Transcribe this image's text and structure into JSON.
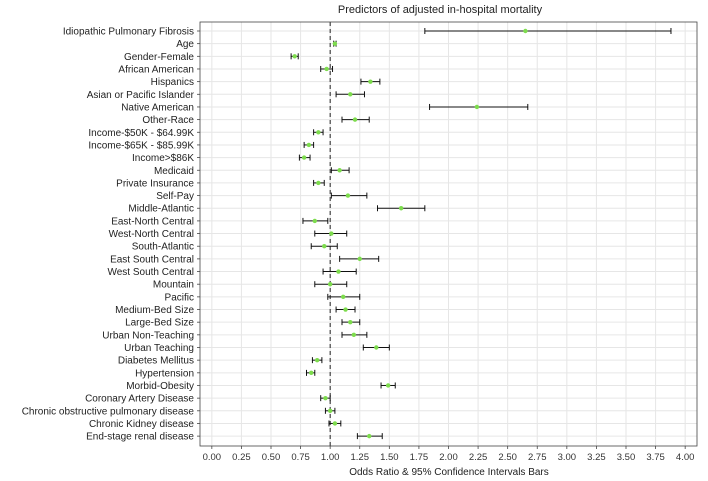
{
  "chart_data": {
    "type": "forest",
    "title": "Predictors of adjusted in-hospital mortality",
    "xlabel": "Odds Ratio & 95% Confidence Intervals Bars",
    "ylabel": "",
    "xlim": [
      -0.1,
      4.1
    ],
    "reference_line": 1.0,
    "x_ticks": [
      "0.00",
      "0.25",
      "0.50",
      "0.75",
      "1.00",
      "1.25",
      "1.50",
      "1.75",
      "2.00",
      "2.25",
      "2.50",
      "2.75",
      "3.00",
      "3.25",
      "3.50",
      "3.75",
      "4.00"
    ],
    "grid": true,
    "point_color": "#7ddc4d",
    "bar_color": "#111111",
    "rows": [
      {
        "label": "Idiopathic Pulmonary Fibrosis",
        "or": 2.65,
        "lo": 1.8,
        "hi": 3.88
      },
      {
        "label": "Age",
        "or": 1.04,
        "lo": 1.03,
        "hi": 1.05
      },
      {
        "label": "Gender-Female",
        "or": 0.7,
        "lo": 0.67,
        "hi": 0.73
      },
      {
        "label": "African American",
        "or": 0.97,
        "lo": 0.92,
        "hi": 1.02
      },
      {
        "label": "Hispanics",
        "or": 1.34,
        "lo": 1.26,
        "hi": 1.42
      },
      {
        "label": "Asian or Pacific Islander",
        "or": 1.17,
        "lo": 1.05,
        "hi": 1.29
      },
      {
        "label": "Native American",
        "or": 2.24,
        "lo": 1.84,
        "hi": 2.67
      },
      {
        "label": "Other-Race",
        "or": 1.21,
        "lo": 1.1,
        "hi": 1.33
      },
      {
        "label": "Income-$50K - $64.99K",
        "or": 0.9,
        "lo": 0.86,
        "hi": 0.94
      },
      {
        "label": "Income-$65K - $85.99K",
        "or": 0.82,
        "lo": 0.78,
        "hi": 0.86
      },
      {
        "label": "Income>$86K",
        "or": 0.78,
        "lo": 0.74,
        "hi": 0.83
      },
      {
        "label": "Medicaid",
        "or": 1.08,
        "lo": 1.01,
        "hi": 1.16
      },
      {
        "label": "Private Insurance",
        "or": 0.9,
        "lo": 0.86,
        "hi": 0.95
      },
      {
        "label": "Self-Pay",
        "or": 1.15,
        "lo": 1.01,
        "hi": 1.31
      },
      {
        "label": "Middle-Atlantic",
        "or": 1.6,
        "lo": 1.4,
        "hi": 1.8
      },
      {
        "label": "East-North Central",
        "or": 0.87,
        "lo": 0.77,
        "hi": 0.98
      },
      {
        "label": "West-North Central",
        "or": 1.01,
        "lo": 0.87,
        "hi": 1.14
      },
      {
        "label": "South-Atlantic",
        "or": 0.95,
        "lo": 0.84,
        "hi": 1.06
      },
      {
        "label": "East South Central",
        "or": 1.25,
        "lo": 1.08,
        "hi": 1.41
      },
      {
        "label": "West South Central",
        "or": 1.07,
        "lo": 0.94,
        "hi": 1.22
      },
      {
        "label": "Mountain",
        "or": 1.0,
        "lo": 0.87,
        "hi": 1.14
      },
      {
        "label": "Pacific",
        "or": 1.11,
        "lo": 0.98,
        "hi": 1.25
      },
      {
        "label": "Medium-Bed Size",
        "or": 1.13,
        "lo": 1.05,
        "hi": 1.21
      },
      {
        "label": "Large-Bed Size",
        "or": 1.17,
        "lo": 1.1,
        "hi": 1.25
      },
      {
        "label": "Urban Non-Teaching",
        "or": 1.2,
        "lo": 1.1,
        "hi": 1.31
      },
      {
        "label": "Urban Teaching",
        "or": 1.39,
        "lo": 1.28,
        "hi": 1.5
      },
      {
        "label": "Diabetes Mellitus",
        "or": 0.89,
        "lo": 0.85,
        "hi": 0.93
      },
      {
        "label": "Hypertension",
        "or": 0.84,
        "lo": 0.8,
        "hi": 0.87
      },
      {
        "label": "Morbid-Obesity",
        "or": 1.49,
        "lo": 1.43,
        "hi": 1.55
      },
      {
        "label": "Coronary Artery Disease",
        "or": 0.96,
        "lo": 0.92,
        "hi": 1.0
      },
      {
        "label": "Chronic obstructive pulmonary disease",
        "or": 1.0,
        "lo": 0.96,
        "hi": 1.04
      },
      {
        "label": "Chronic Kidney disease",
        "or": 1.04,
        "lo": 0.99,
        "hi": 1.09
      },
      {
        "label": "End-stage renal disease",
        "or": 1.33,
        "lo": 1.23,
        "hi": 1.44
      }
    ]
  }
}
